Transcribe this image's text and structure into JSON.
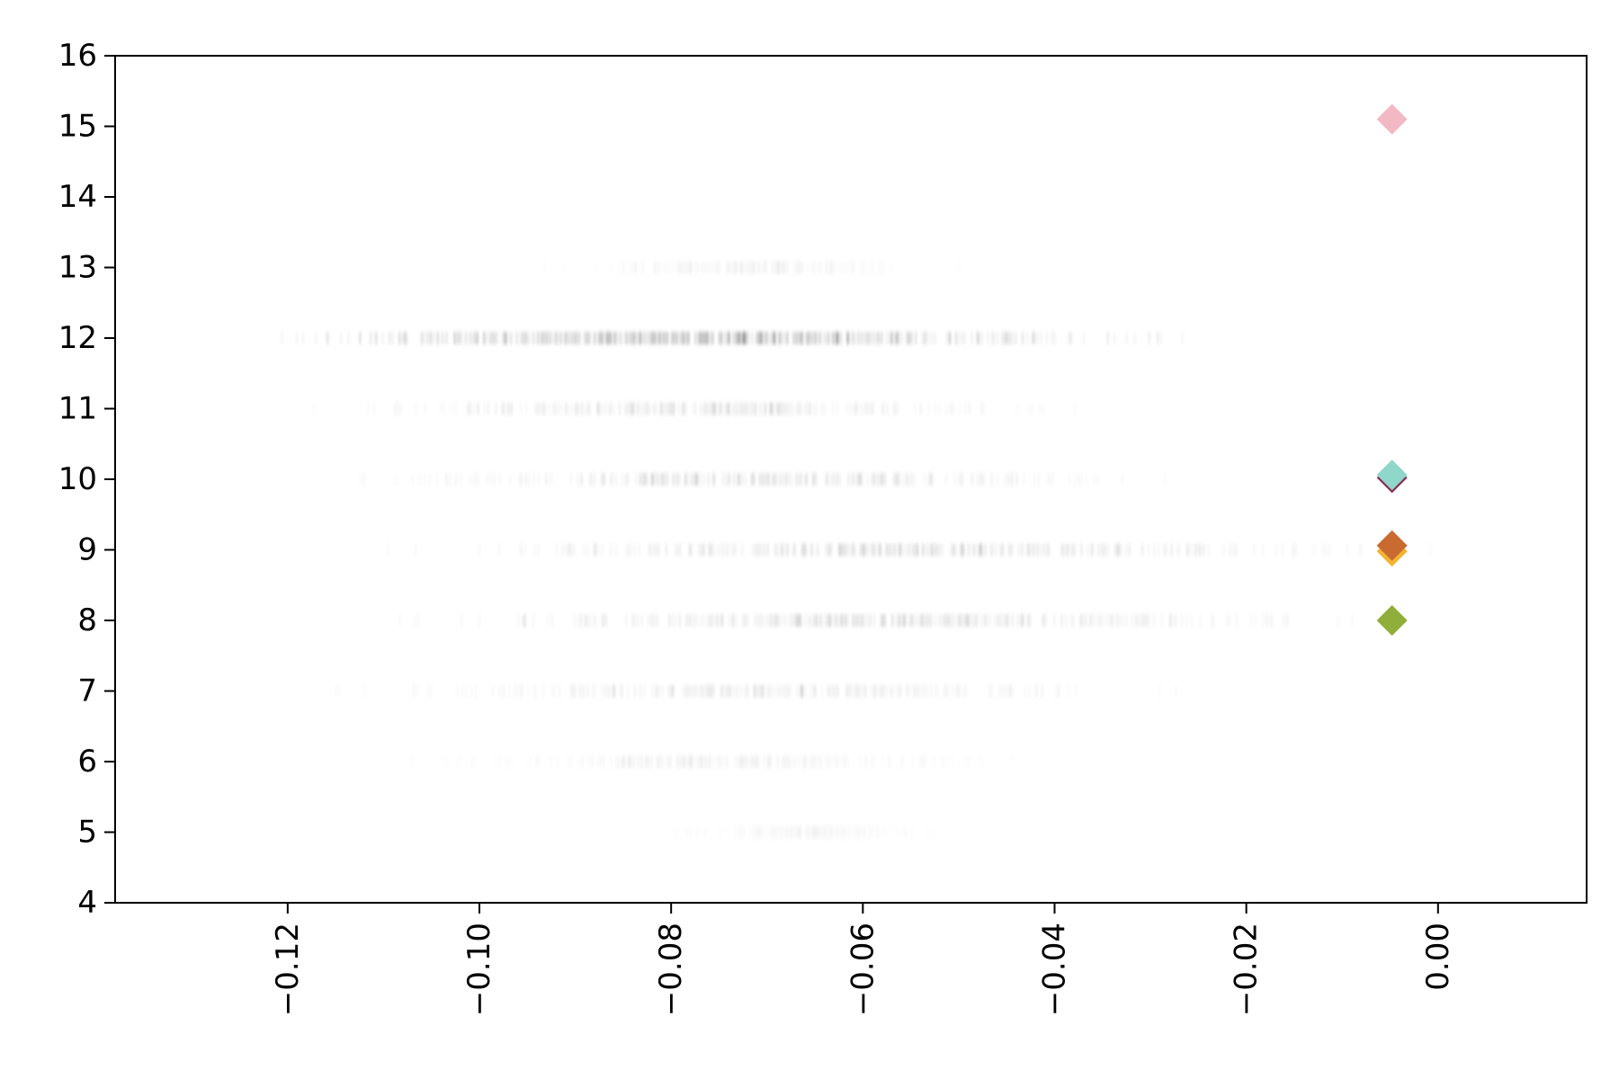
{
  "chart_data": {
    "type": "scatter",
    "title": "",
    "xlabel": "",
    "ylabel": "",
    "xlim": [
      -0.138,
      0.0155
    ],
    "ylim": [
      4,
      16
    ],
    "grid": false,
    "x_ticks": [
      -0.12,
      -0.1,
      -0.08,
      -0.06,
      -0.04,
      -0.02,
      0.0
    ],
    "x_tick_labels": [
      "−0.12",
      "−0.10",
      "−0.08",
      "−0.06",
      "−0.04",
      "−0.02",
      "0.00"
    ],
    "y_ticks": [
      4,
      5,
      6,
      7,
      8,
      9,
      10,
      11,
      12,
      13,
      14,
      15,
      16
    ],
    "y_tick_labels": [
      "4",
      "5",
      "6",
      "7",
      "8",
      "9",
      "10",
      "11",
      "12",
      "13",
      "14",
      "15",
      "16"
    ],
    "background_strips": [
      {
        "y": 5,
        "x_range": [
          -0.084,
          -0.048
        ],
        "density": 0.05
      },
      {
        "y": 6,
        "x_range": [
          -0.109,
          -0.041
        ],
        "density": 0.2
      },
      {
        "y": 7,
        "x_range": [
          -0.122,
          -0.018
        ],
        "density": 0.35
      },
      {
        "y": 8,
        "x_range": [
          -0.118,
          -0.001
        ],
        "density": 0.55
      },
      {
        "y": 9,
        "x_range": [
          -0.12,
          0.009
        ],
        "density": 0.55
      },
      {
        "y": 10,
        "x_range": [
          -0.12,
          -0.02
        ],
        "density": 0.45
      },
      {
        "y": 11,
        "x_range": [
          -0.125,
          -0.03
        ],
        "density": 0.4
      },
      {
        "y": 12,
        "x_range": [
          -0.132,
          -0.018
        ],
        "density": 1.0
      },
      {
        "y": 13,
        "x_range": [
          -0.098,
          -0.046
        ],
        "density": 0.12
      }
    ],
    "highlight_points": [
      {
        "x": -0.0048,
        "y": 15.1,
        "color": "#f2b8c4"
      },
      {
        "x": -0.0048,
        "y": 10.02,
        "color": "#8b2f4f"
      },
      {
        "x": -0.0048,
        "y": 10.06,
        "color": "#8fd6cb"
      },
      {
        "x": -0.0048,
        "y": 8.98,
        "color": "#f2b431"
      },
      {
        "x": -0.0048,
        "y": 9.06,
        "color": "#c96a30"
      },
      {
        "x": -0.0048,
        "y": 8.0,
        "color": "#8fae3a"
      }
    ],
    "marker": "diamond"
  }
}
